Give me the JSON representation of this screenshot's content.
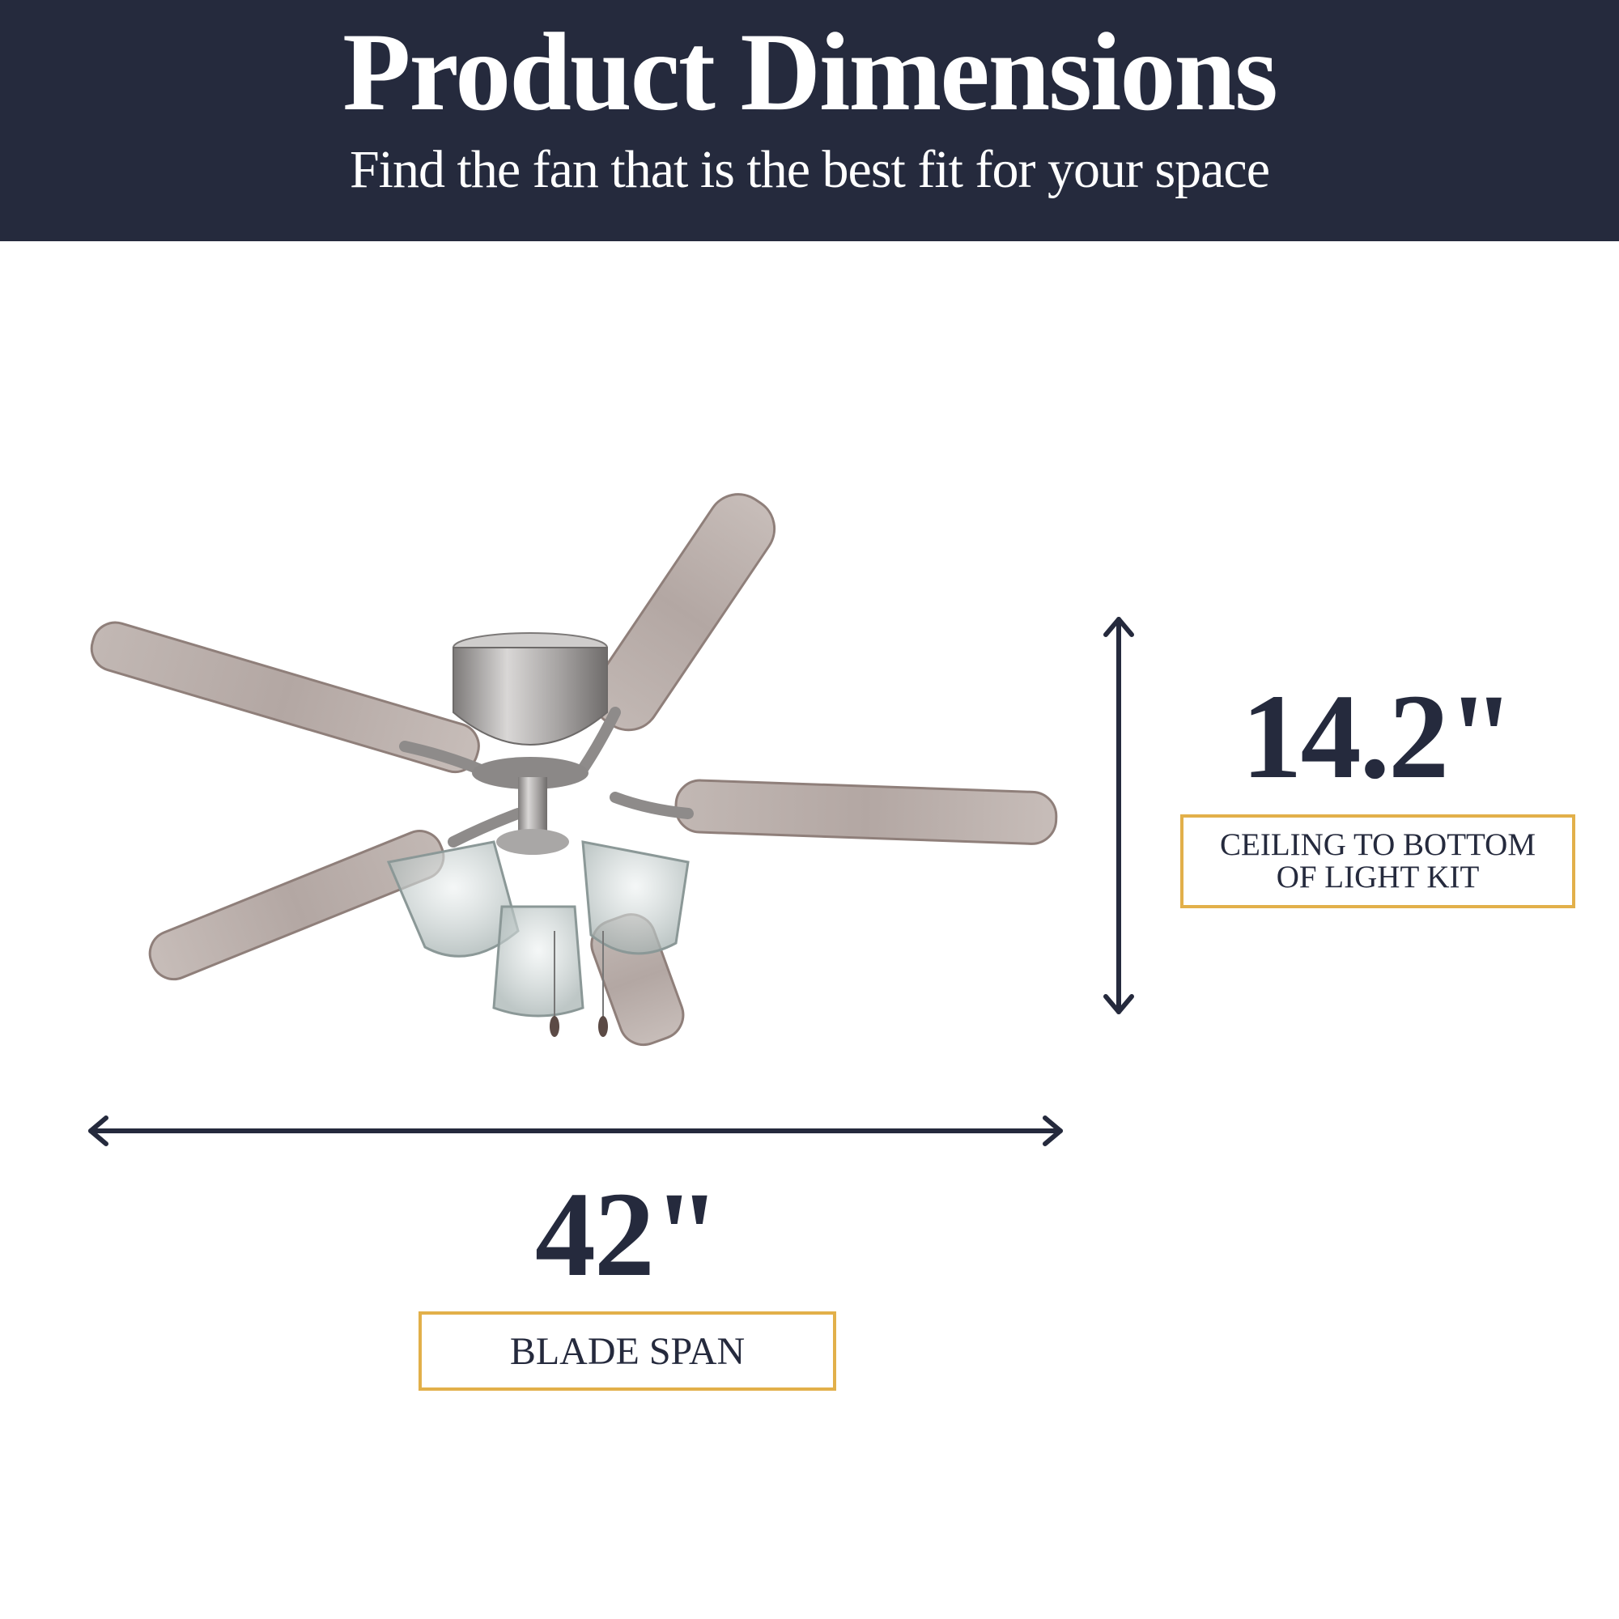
{
  "header": {
    "title": "Product Dimensions",
    "subtitle": "Find the fan that is the best fit for your space"
  },
  "height_dimension": {
    "value": "14.2\"",
    "label_line1": "CEILING TO BOTTOM",
    "label_line2": "OF LIGHT KIT"
  },
  "width_dimension": {
    "value": "42\"",
    "label": "BLADE SPAN"
  },
  "colors": {
    "navy": "#252a3d",
    "gold": "#e2b04a",
    "blade_wood": "#b8aca8",
    "brushed_nickel": "#a9a7a6"
  }
}
